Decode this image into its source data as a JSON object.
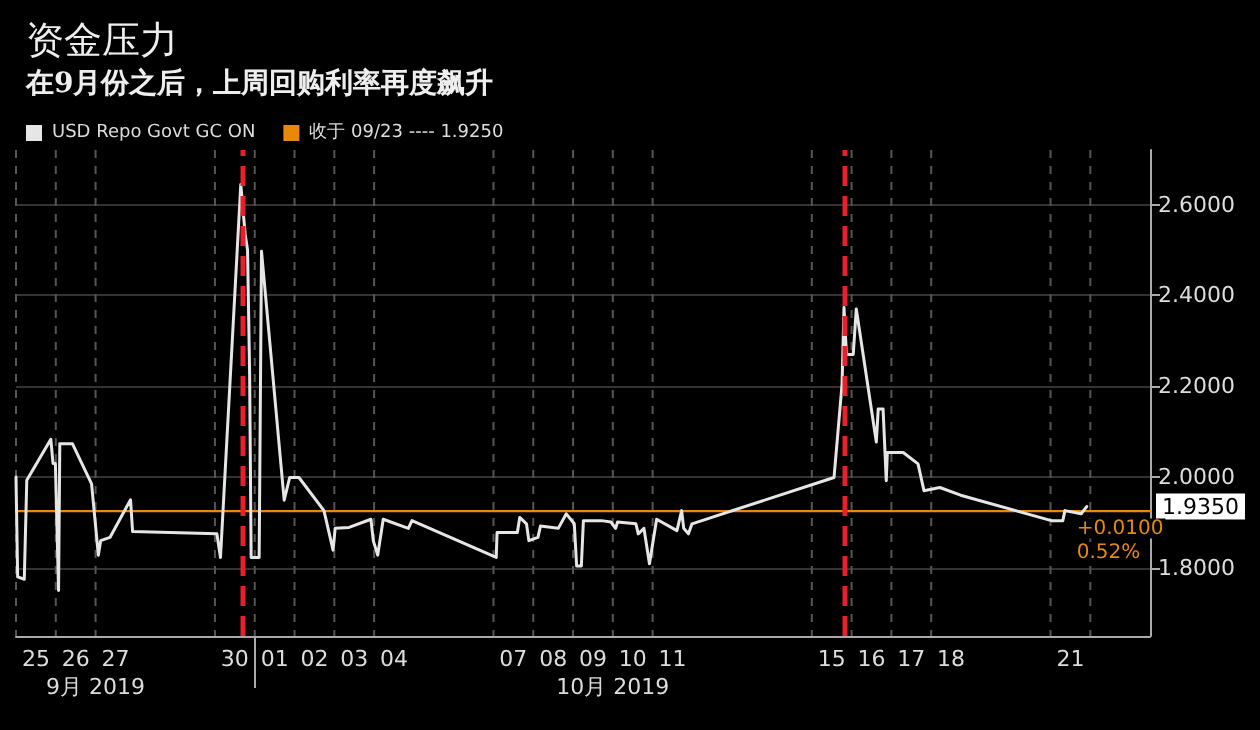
{
  "chart_data": {
    "type": "line",
    "title": "资金压力",
    "subtitle": "在9月份之后，上周回购利率再度飙升",
    "x": [
      "2019-09-25T00:00",
      "2019-09-25T01:00",
      "2019-09-25T05:00",
      "2019-09-25T06:30",
      "2019-09-25T21:00",
      "2019-09-25T22:20",
      "2019-09-25T23:45",
      "2019-09-26T01:40",
      "2019-09-26T02:25",
      "2019-09-26T10:05",
      "2019-09-26T21:35",
      "2019-09-27T01:40",
      "2019-09-27T03:05",
      "2019-09-27T08:40",
      "2019-09-27T21:05",
      "2019-09-27T22:20",
      "2019-09-30T01:10",
      "2019-09-30T03:20",
      "2019-09-30T15:35",
      "2019-09-30T18:15",
      "2019-09-30T19:40",
      "2019-09-30T20:55",
      "2019-09-30T21:50",
      "2019-10-01T02:40",
      "2019-10-01T04:05",
      "2019-10-01T17:45",
      "2019-10-01T21:05",
      "2019-10-02T02:40",
      "2019-10-02T17:45",
      "2019-10-02T23:15",
      "2019-10-03T00:30",
      "2019-10-03T08:55",
      "2019-10-03T22:05",
      "2019-10-03T23:30",
      "2019-10-04T02:10",
      "2019-10-04T05:30",
      "2019-10-04T20:40",
      "2019-10-04T22:50",
      "2019-10-07T01:40",
      "2019-10-07T02:10",
      "2019-10-07T14:25",
      "2019-10-07T15:50",
      "2019-10-07T19:55",
      "2019-10-07T21:20",
      "2019-10-08T02:50",
      "2019-10-08T04:20",
      "2019-10-08T15:05",
      "2019-10-08T19:55",
      "2019-10-09T00:45",
      "2019-10-09T02:10",
      "2019-10-09T05:00",
      "2019-10-09T06:15",
      "2019-10-09T17:15",
      "2019-10-09T22:50",
      "2019-10-10T01:40",
      "2019-10-10T02:50",
      "2019-10-10T13:55",
      "2019-10-10T15:20",
      "2019-10-10T18:45",
      "2019-10-10T22:05",
      "2019-10-11T02:25",
      "2019-10-11T14:40",
      "2019-10-11T17:30",
      "2019-10-11T18:45",
      "2019-10-11T21:35",
      "2019-10-11T23:45",
      "2019-10-15T13:25",
      "2019-10-15T18:15",
      "2019-10-15T19:25",
      "2019-10-15T20:55",
      "2019-10-16T01:00",
      "2019-10-16T02:50",
      "2019-10-16T14:55",
      "2019-10-16T16:05",
      "2019-10-16T19:00",
      "2019-10-16T20:55",
      "2019-10-16T21:35",
      "2019-10-17T07:10",
      "2019-10-17T16:05",
      "2019-10-17T19:40",
      "2019-10-18T05:15",
      "2019-10-18T17:45",
      "2019-10-21T00:30",
      "2019-10-21T07:25",
      "2019-10-21T08:40",
      "2019-10-21T18:30",
      "2019-10-21T21:50"
    ],
    "series": [
      {
        "name": "USD Repo Govt GC ON",
        "color": "#e6e6e6",
        "values": [
          2.0,
          1.78,
          1.775,
          1.993,
          2.083,
          2.03,
          2.03,
          1.75,
          2.073,
          2.073,
          1.985,
          1.828,
          1.86,
          1.867,
          1.95,
          1.88,
          1.875,
          1.823,
          2.644,
          2.534,
          2.5,
          2.226,
          1.823,
          1.823,
          2.497,
          1.949,
          1.999,
          1.999,
          1.926,
          1.839,
          1.887,
          1.889,
          1.907,
          1.86,
          1.828,
          1.907,
          1.887,
          1.904,
          1.823,
          1.878,
          1.878,
          1.911,
          1.897,
          1.86,
          1.867,
          1.892,
          1.887,
          1.919,
          1.897,
          1.804,
          1.804,
          1.904,
          1.904,
          1.901,
          1.887,
          1.901,
          1.897,
          1.875,
          1.887,
          1.809,
          1.907,
          1.882,
          1.926,
          1.887,
          1.875,
          1.897,
          1.999,
          2.204,
          2.373,
          2.27,
          2.27,
          2.37,
          2.077,
          2.15,
          2.15,
          1.992,
          2.054,
          2.054,
          2.029,
          1.97,
          1.977,
          1.96,
          1.904,
          1.904,
          1.926,
          1.919,
          1.935
        ]
      },
      {
        "name": "收于 09/23 ---- 1.9250",
        "color": "#e8890c",
        "x": [
          "2019-09-25T00:00",
          "2019-10-23T12:00"
        ],
        "values": [
          1.925,
          1.925
        ]
      }
    ],
    "xlim": [
      "2019-09-25T00:00",
      "2019-10-23T12:00"
    ],
    "xticks": [
      {
        "value": "2019-09-25T00:00",
        "label": null
      },
      {
        "value": "2019-09-25T12:00",
        "label": "25"
      },
      {
        "value": "2019-09-26T00:00",
        "label": null
      },
      {
        "value": "2019-09-26T12:00",
        "label": "26"
      },
      {
        "value": "2019-09-27T00:00",
        "label": null
      },
      {
        "value": "2019-09-27T12:00",
        "label": "27"
      },
      {
        "value": "2019-09-30T00:00",
        "label": null
      },
      {
        "value": "2019-09-30T12:00",
        "label": "30"
      },
      {
        "value": "2019-10-01T00:00",
        "label": null
      },
      {
        "value": "2019-10-01T12:00",
        "label": "01"
      },
      {
        "value": "2019-10-02T00:00",
        "label": null
      },
      {
        "value": "2019-10-02T12:00",
        "label": "02"
      },
      {
        "value": "2019-10-03T00:00",
        "label": null
      },
      {
        "value": "2019-10-03T12:00",
        "label": "03"
      },
      {
        "value": "2019-10-04T00:00",
        "label": null
      },
      {
        "value": "2019-10-04T12:00",
        "label": "04"
      },
      {
        "value": "2019-10-07T00:00",
        "label": null
      },
      {
        "value": "2019-10-07T12:00",
        "label": "07"
      },
      {
        "value": "2019-10-08T00:00",
        "label": null
      },
      {
        "value": "2019-10-08T12:00",
        "label": "08"
      },
      {
        "value": "2019-10-09T00:00",
        "label": null
      },
      {
        "value": "2019-10-09T12:00",
        "label": "09"
      },
      {
        "value": "2019-10-10T00:00",
        "label": null
      },
      {
        "value": "2019-10-10T12:00",
        "label": "10"
      },
      {
        "value": "2019-10-11T00:00",
        "label": null
      },
      {
        "value": "2019-10-11T12:00",
        "label": "11"
      },
      {
        "value": "2019-10-15T00:00",
        "label": null
      },
      {
        "value": "2019-10-15T12:00",
        "label": "15"
      },
      {
        "value": "2019-10-16T00:00",
        "label": null
      },
      {
        "value": "2019-10-16T12:00",
        "label": "16"
      },
      {
        "value": "2019-10-17T00:00",
        "label": null
      },
      {
        "value": "2019-10-17T12:00",
        "label": "17"
      },
      {
        "value": "2019-10-18T00:00",
        "label": null
      },
      {
        "value": "2019-10-18T12:00",
        "label": "18"
      },
      {
        "value": "2019-10-21T00:00",
        "label": null
      },
      {
        "value": "2019-10-21T12:00",
        "label": "21"
      },
      {
        "value": "2019-10-22T00:00",
        "label": null
      }
    ],
    "x2lim": [
      "2019-09-25T00:00",
      "2019-10-23T12:00"
    ],
    "x2ticks": [
      {
        "value": "2019-09-27T00:00",
        "label": "9月 2019"
      },
      {
        "value": "2019-10-01T00:00",
        "label": null
      },
      {
        "value": "2019-10-10T00:00",
        "label": "10月 2019"
      }
    ],
    "ylim": [
      1.65,
      2.72
    ],
    "yticks": [
      {
        "value": 1.8,
        "label": "1.8000"
      },
      {
        "value": 2.0,
        "label": "2.0000"
      },
      {
        "value": 2.2,
        "label": "2.2000"
      },
      {
        "value": 2.4,
        "label": "2.4000"
      },
      {
        "value": 2.6,
        "label": "2.6000"
      }
    ],
    "ref_lines": [
      {
        "axis": "x",
        "value": "2019-09-30T16:20",
        "color": "#e8202a",
        "line_style": "dashed"
      },
      {
        "axis": "x",
        "value": "2019-10-15T19:25",
        "color": "#e8202a",
        "line_style": "dashed"
      }
    ],
    "annotations": [
      "1.9350",
      "+0.0100",
      "0.52%"
    ],
    "grid": true,
    "legend": "top left",
    "marker": "none",
    "line_style": "solid"
  }
}
